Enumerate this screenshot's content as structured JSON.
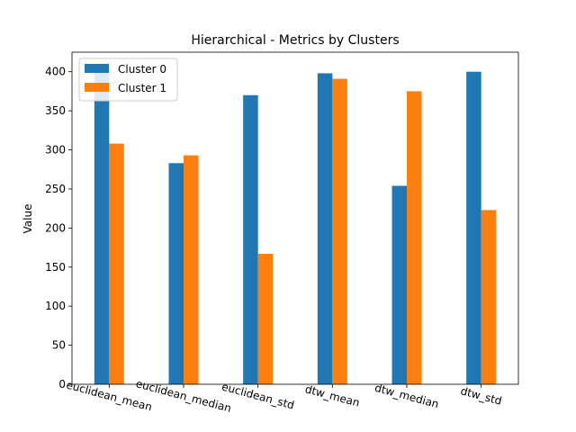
{
  "chart_data": {
    "type": "bar",
    "title": "Hierarchical - Metrics by Clusters",
    "xlabel": "",
    "ylabel": "Value",
    "categories": [
      "euclidean_mean",
      "euclidean_median",
      "euclidean_std",
      "dtw_mean",
      "dtw_median",
      "dtw_std"
    ],
    "series": [
      {
        "name": "Cluster 0",
        "color": "#1f77b4",
        "values": [
          399,
          283,
          370,
          398,
          254,
          400
        ]
      },
      {
        "name": "Cluster 1",
        "color": "#ff7f0e",
        "values": [
          308,
          293,
          167,
          391,
          375,
          223
        ]
      }
    ],
    "ylim": [
      0,
      425
    ],
    "yticks": [
      0,
      50,
      100,
      150,
      200,
      250,
      300,
      350,
      400
    ],
    "grid": false,
    "legend_position": "top-left"
  }
}
